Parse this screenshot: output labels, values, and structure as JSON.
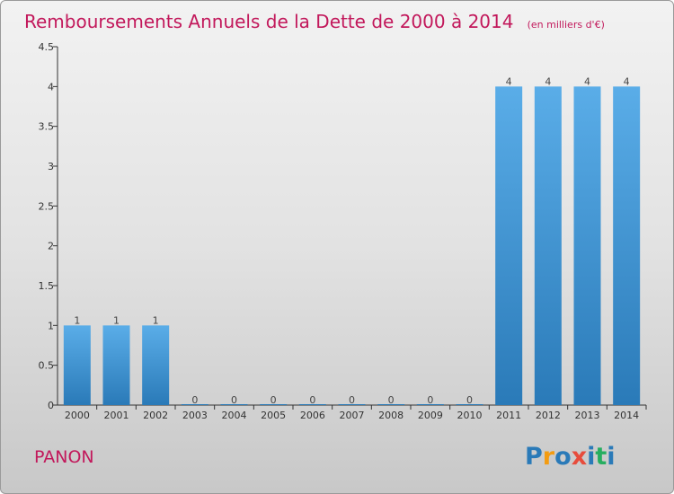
{
  "chart_data": {
    "type": "bar",
    "title": "Remboursements Annuels de la Dette de 2000 à 2014",
    "unit": "(en milliers d'€)",
    "categories": [
      "2000",
      "2001",
      "2002",
      "2003",
      "2004",
      "2005",
      "2006",
      "2007",
      "2008",
      "2009",
      "2010",
      "2011",
      "2012",
      "2013",
      "2014"
    ],
    "values": [
      1,
      1,
      1,
      0,
      0,
      0,
      0,
      0,
      0,
      0,
      0,
      4,
      4,
      4,
      4
    ],
    "data_labels": [
      "1",
      "1",
      "1",
      "0",
      "0",
      "0",
      "0",
      "0",
      "0",
      "0",
      "0",
      "4",
      "4",
      "4",
      "4"
    ],
    "ylim": [
      0,
      4.5
    ],
    "yticks": [
      0,
      0.5,
      1,
      1.5,
      2,
      2.5,
      3,
      3.5,
      4,
      4.5
    ],
    "ytick_labels": [
      "0",
      "0.5",
      "1",
      "1.5",
      "2",
      "2.5",
      "3",
      "3.5",
      "4",
      "4.5"
    ],
    "xlabel": "",
    "ylabel": "",
    "grid": false,
    "colors": {
      "bar_light": "#5aade8",
      "bar_dark": "#2a7ab8",
      "title": "#c2185b"
    }
  },
  "commune": "PANON",
  "logo": {
    "letters": [
      "P",
      "r",
      "o",
      "x",
      "i",
      "t",
      "i"
    ],
    "colors": [
      "#2a7ab8",
      "#f39c12",
      "#2a7ab8",
      "#e74c3c",
      "#2a7ab8",
      "#27ae60",
      "#2a7ab8"
    ]
  }
}
